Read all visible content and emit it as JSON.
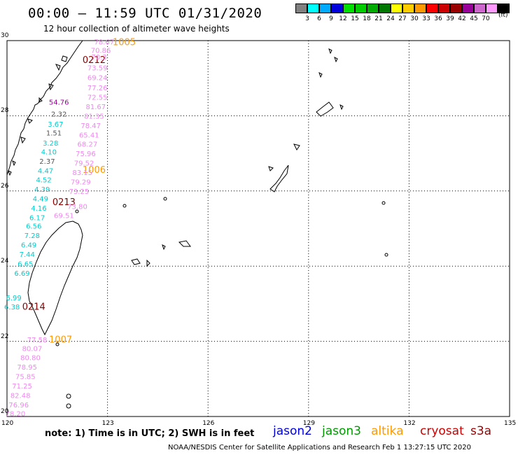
{
  "header": {
    "title": "00:00 – 11:59 UTC 01/31/2020",
    "subtitle": "12 hour collection of altimeter wave heights"
  },
  "colorbar": {
    "unit": "(ft)",
    "items": [
      {
        "label": "",
        "color": "#808080"
      },
      {
        "label": "3",
        "color": "#00ffff"
      },
      {
        "label": "6",
        "color": "#00aaff"
      },
      {
        "label": "9",
        "color": "#0000dd"
      },
      {
        "label": "12",
        "color": "#00e000"
      },
      {
        "label": "15",
        "color": "#00cc00"
      },
      {
        "label": "18",
        "color": "#00aa00"
      },
      {
        "label": "21",
        "color": "#007700"
      },
      {
        "label": "24",
        "color": "#ffff00"
      },
      {
        "label": "27",
        "color": "#ffcc00"
      },
      {
        "label": "30",
        "color": "#ff9900"
      },
      {
        "label": "33",
        "color": "#ff0000"
      },
      {
        "label": "36",
        "color": "#cc0000"
      },
      {
        "label": "39",
        "color": "#990000"
      },
      {
        "label": "42",
        "color": "#990099"
      },
      {
        "label": "45",
        "color": "#cc66cc"
      },
      {
        "label": "70",
        "color": "#ff99ff"
      },
      {
        "label": "",
        "color": "#000000"
      }
    ]
  },
  "map": {
    "lon_range": [
      120,
      135
    ],
    "lat_range": [
      20,
      30
    ],
    "lon_labels": [
      "120",
      "123",
      "126",
      "129",
      "132",
      "135"
    ],
    "lat_labels": [
      "20",
      "22",
      "24",
      "26",
      "28",
      "30"
    ],
    "land_color": "#000000",
    "grid_color": "#000000"
  },
  "pass_labels": [
    {
      "text": "1005",
      "lon": 123.5,
      "lat": 29.97,
      "color": "#ff9900"
    },
    {
      "text": "0212",
      "lon": 122.6,
      "lat": 29.5,
      "color": "#8b0000"
    },
    {
      "text": "1006",
      "lon": 122.6,
      "lat": 26.57,
      "color": "#ff9900"
    },
    {
      "text": "0213",
      "lon": 121.7,
      "lat": 25.72,
      "color": "#8b0000"
    },
    {
      "text": "0214",
      "lon": 120.8,
      "lat": 22.93,
      "color": "#8b0000"
    },
    {
      "text": "1007",
      "lon": 121.6,
      "lat": 22.06,
      "color": "#ff9900"
    }
  ],
  "wave_values": [
    {
      "text": "78.67",
      "lon": 122.9,
      "lat": 29.97,
      "color": "#ee88ee"
    },
    {
      "text": "70.86",
      "lon": 122.8,
      "lat": 29.75,
      "color": "#ee88ee"
    },
    {
      "text": "70.3",
      "lon": 122.75,
      "lat": 29.57,
      "color": "#ee88ee"
    },
    {
      "text": "73.59",
      "lon": 122.7,
      "lat": 29.28,
      "color": "#ee88ee"
    },
    {
      "text": "69.24",
      "lon": 122.7,
      "lat": 29.02,
      "color": "#ee88ee"
    },
    {
      "text": "77.26",
      "lon": 122.7,
      "lat": 28.75,
      "color": "#ee88ee"
    },
    {
      "text": "72.55",
      "lon": 122.7,
      "lat": 28.5,
      "color": "#ee88ee"
    },
    {
      "text": "81.67",
      "lon": 122.65,
      "lat": 28.25,
      "color": "#ee88ee"
    },
    {
      "text": "81.35",
      "lon": 122.6,
      "lat": 28.0,
      "color": "#ee88ee"
    },
    {
      "text": "78.47",
      "lon": 122.5,
      "lat": 27.75,
      "color": "#ee88ee"
    },
    {
      "text": "65.41",
      "lon": 122.45,
      "lat": 27.5,
      "color": "#ee88ee"
    },
    {
      "text": "68.27",
      "lon": 122.4,
      "lat": 27.25,
      "color": "#ee88ee"
    },
    {
      "text": "75.96",
      "lon": 122.35,
      "lat": 27.0,
      "color": "#ee88ee"
    },
    {
      "text": "79.52",
      "lon": 122.3,
      "lat": 26.75,
      "color": "#ee88ee"
    },
    {
      "text": "83.15",
      "lon": 122.25,
      "lat": 26.5,
      "color": "#ee88ee"
    },
    {
      "text": "79.29",
      "lon": 122.2,
      "lat": 26.25,
      "color": "#ee88ee"
    },
    {
      "text": "73.25",
      "lon": 122.15,
      "lat": 26.0,
      "color": "#ee88ee"
    },
    {
      "text": "73.80",
      "lon": 122.1,
      "lat": 25.6,
      "color": "#ee88ee"
    },
    {
      "text": "69.51",
      "lon": 121.7,
      "lat": 25.35,
      "color": "#ee88ee"
    },
    {
      "text": "54.76",
      "lon": 121.55,
      "lat": 28.37,
      "color": "#990099"
    },
    {
      "text": "2.32",
      "lon": 121.55,
      "lat": 28.05,
      "color": "#555555"
    },
    {
      "text": "3.67",
      "lon": 121.45,
      "lat": 27.78,
      "color": "#00cccc"
    },
    {
      "text": "1.51",
      "lon": 121.4,
      "lat": 27.55,
      "color": "#555555"
    },
    {
      "text": "3.28",
      "lon": 121.3,
      "lat": 27.28,
      "color": "#00cccc"
    },
    {
      "text": "4.10",
      "lon": 121.25,
      "lat": 27.05,
      "color": "#00cccc"
    },
    {
      "text": "2.37",
      "lon": 121.2,
      "lat": 26.8,
      "color": "#555555"
    },
    {
      "text": "4.47",
      "lon": 121.15,
      "lat": 26.55,
      "color": "#00cccc"
    },
    {
      "text": "4.52",
      "lon": 121.1,
      "lat": 26.3,
      "color": "#00cccc"
    },
    {
      "text": "4.39",
      "lon": 121.05,
      "lat": 26.05,
      "color": "#00cccc"
    },
    {
      "text": "4.49",
      "lon": 121.0,
      "lat": 25.8,
      "color": "#00cccc"
    },
    {
      "text": "4.16",
      "lon": 120.95,
      "lat": 25.55,
      "color": "#00cccc"
    },
    {
      "text": "6.17",
      "lon": 120.9,
      "lat": 25.3,
      "color": "#00cccc"
    },
    {
      "text": "6.56",
      "lon": 120.8,
      "lat": 25.07,
      "color": "#00cccc"
    },
    {
      "text": "7.28",
      "lon": 120.75,
      "lat": 24.82,
      "color": "#00cccc"
    },
    {
      "text": "6.49",
      "lon": 120.65,
      "lat": 24.57,
      "color": "#00cccc"
    },
    {
      "text": "7.44",
      "lon": 120.6,
      "lat": 24.32,
      "color": "#00cccc"
    },
    {
      "text": "6.65",
      "lon": 120.55,
      "lat": 24.07,
      "color": "#00cccc"
    },
    {
      "text": "6.69",
      "lon": 120.45,
      "lat": 23.82,
      "color": "#00cccc"
    },
    {
      "text": "6.99",
      "lon": 120.2,
      "lat": 23.17,
      "color": "#00cccc"
    },
    {
      "text": "6.38",
      "lon": 120.15,
      "lat": 22.92,
      "color": "#00cccc"
    },
    {
      "text": "77.58",
      "lon": 120.9,
      "lat": 22.05,
      "color": "#ee88ee"
    },
    {
      "text": "80.07",
      "lon": 120.75,
      "lat": 21.82,
      "color": "#ee88ee"
    },
    {
      "text": "80.80",
      "lon": 120.7,
      "lat": 21.57,
      "color": "#ee88ee"
    },
    {
      "text": "78.95",
      "lon": 120.6,
      "lat": 21.32,
      "color": "#ee88ee"
    },
    {
      "text": "75.85",
      "lon": 120.55,
      "lat": 21.07,
      "color": "#ee88ee"
    },
    {
      "text": "71.25",
      "lon": 120.45,
      "lat": 20.82,
      "color": "#ee88ee"
    },
    {
      "text": "82.48",
      "lon": 120.4,
      "lat": 20.57,
      "color": "#ee88ee"
    },
    {
      "text": "76.96",
      "lon": 120.35,
      "lat": 20.32,
      "color": "#ee88ee"
    },
    {
      "text": "78.20",
      "lon": 120.25,
      "lat": 20.08,
      "color": "#ee88ee"
    }
  ],
  "footer": {
    "note": "note:  1) Time is in UTC;  2) SWH is in feet",
    "satellites": [
      {
        "name": "jason2",
        "color": "#0000dd"
      },
      {
        "name": "jason3",
        "color": "#009900"
      },
      {
        "name": "altika",
        "color": "#ff9900"
      },
      {
        "name": "cryosat",
        "color": "#cc0000"
      },
      {
        "name": "s3a",
        "color": "#990000"
      }
    ],
    "credit": "NOAA/NESDIS Center for Satellite Applications and Research    Feb  1 13:27:15 UTC 2020"
  }
}
